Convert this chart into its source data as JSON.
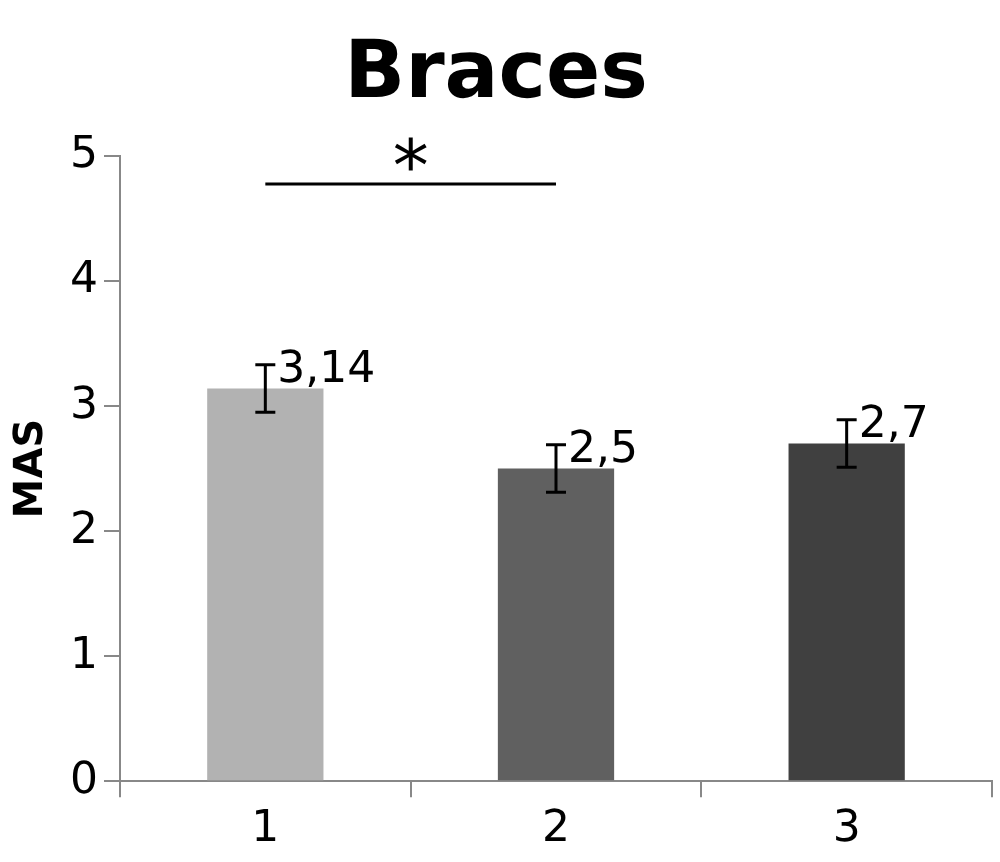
{
  "chart_data": {
    "type": "bar",
    "title": "Braces",
    "ylabel": "MAS",
    "categories": [
      "1",
      "2",
      "3"
    ],
    "values": [
      3.14,
      2.5,
      2.7
    ],
    "colors": [
      "#b2b2b2",
      "#606060",
      "#404040"
    ],
    "errors": [
      0.19,
      0.19,
      0.19
    ],
    "value_labels": [
      "3,14",
      "2,5",
      "2,7"
    ],
    "ylim": [
      0,
      5
    ],
    "yticks": [
      0,
      1,
      2,
      3,
      4,
      5
    ],
    "grid": false,
    "legend": false,
    "annotations": [
      "*"
    ]
  }
}
